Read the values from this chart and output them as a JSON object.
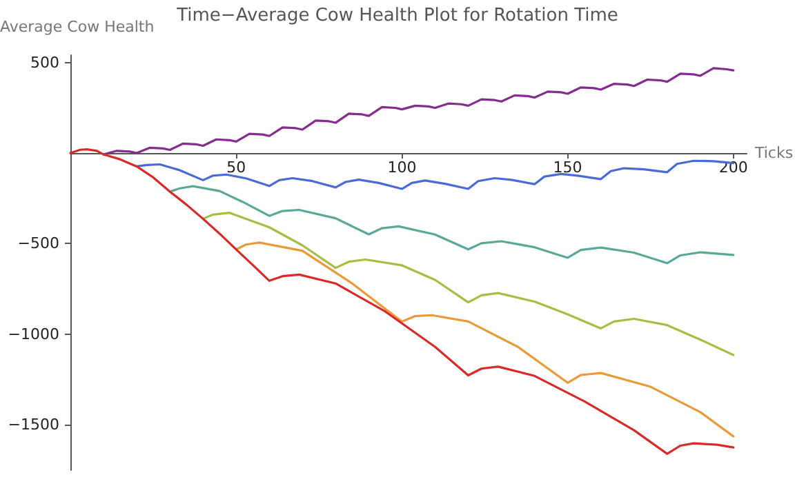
{
  "chart_data": {
    "type": "line",
    "title": "Time−Average Cow Health Plot for Rotation Time",
    "xlabel": "Ticks",
    "ylabel": "Average Cow Health",
    "xlim": [
      0,
      204
    ],
    "ylim": [
      -1750,
      540
    ],
    "xticks": [
      50,
      100,
      150,
      200
    ],
    "yticks": [
      {
        "value": -1500,
        "label": "−1500"
      },
      {
        "value": -1000,
        "label": "−1000"
      },
      {
        "value": -500,
        "label": "−500"
      },
      500
    ],
    "grid": false,
    "marker": "none",
    "line_style": "solid",
    "series": [
      {
        "color": "#852d8f",
        "x": [
          10,
          14,
          18,
          20,
          24,
          28,
          30,
          34,
          38,
          40,
          44,
          48,
          50,
          54,
          58,
          60,
          64,
          68,
          70,
          74,
          78,
          80,
          84,
          88,
          90,
          94,
          98,
          100,
          104,
          108,
          110,
          114,
          118,
          120,
          124,
          128,
          130,
          134,
          138,
          140,
          144,
          148,
          150,
          154,
          158,
          160,
          164,
          168,
          170,
          174,
          178,
          180,
          184,
          188,
          190,
          194,
          198,
          200
        ],
        "values": [
          -8,
          12,
          8,
          0,
          29,
          25,
          17,
          52,
          48,
          40,
          75,
          71,
          63,
          106,
          102,
          94,
          141,
          137,
          129,
          179,
          175,
          167,
          217,
          213,
          205,
          253,
          249,
          241,
          261,
          257,
          249,
          273,
          269,
          261,
          296,
          292,
          284,
          318,
          314,
          306,
          339,
          335,
          327,
          362,
          358,
          350,
          382,
          378,
          370,
          405,
          401,
          393,
          438,
          434,
          426,
          468,
          462,
          456
        ]
      },
      {
        "color": "#4a6ad6",
        "x": [
          20,
          23,
          27,
          33,
          40,
          43,
          47,
          53,
          60,
          63,
          67,
          73,
          80,
          83,
          87,
          93,
          100,
          103,
          107,
          113,
          120,
          123,
          128,
          133,
          140,
          143,
          148,
          153,
          160,
          163,
          167,
          173,
          180,
          183,
          188,
          194,
          200
        ],
        "values": [
          -74,
          -66,
          -63,
          -95,
          -150,
          -125,
          -119,
          -140,
          -182,
          -150,
          -139,
          -155,
          -190,
          -160,
          -147,
          -165,
          -198,
          -165,
          -152,
          -170,
          -198,
          -155,
          -139,
          -148,
          -172,
          -130,
          -116,
          -125,
          -144,
          -100,
          -84,
          -90,
          -106,
          -60,
          -43,
          -45,
          -56
        ]
      },
      {
        "color": "#5aa898",
        "x": [
          30,
          33,
          37,
          45,
          52,
          60,
          64,
          69,
          80,
          90,
          94,
          99,
          110,
          120,
          124,
          130,
          140,
          150,
          154,
          160,
          170,
          180,
          184,
          190,
          200
        ],
        "values": [
          -213,
          -195,
          -183,
          -210,
          -270,
          -347,
          -320,
          -314,
          -360,
          -449,
          -415,
          -405,
          -450,
          -532,
          -498,
          -487,
          -520,
          -578,
          -535,
          -522,
          -550,
          -608,
          -565,
          -548,
          -563
        ]
      },
      {
        "color": "#a8bd44",
        "x": [
          40,
          43,
          48,
          60,
          70,
          80,
          84,
          89,
          100,
          110,
          120,
          124,
          129,
          140,
          150,
          160,
          164,
          170,
          180,
          190,
          200
        ],
        "values": [
          -363,
          -340,
          -330,
          -410,
          -510,
          -634,
          -600,
          -588,
          -620,
          -700,
          -824,
          -785,
          -773,
          -820,
          -890,
          -968,
          -930,
          -915,
          -950,
          -1030,
          -1115
        ]
      },
      {
        "color": "#e89b38",
        "x": [
          50,
          53,
          57,
          70,
          85,
          100,
          104,
          109,
          120,
          135,
          150,
          154,
          160,
          175,
          190,
          200
        ],
        "values": [
          -532,
          -505,
          -494,
          -540,
          -720,
          -930,
          -900,
          -895,
          -930,
          -1070,
          -1268,
          -1225,
          -1214,
          -1290,
          -1430,
          -1564
        ]
      },
      {
        "color": "#d92a2a",
        "x": [
          0,
          3,
          5,
          8,
          10,
          15,
          20,
          25,
          30,
          35,
          40,
          45,
          50,
          55,
          60,
          64,
          69,
          80,
          95,
          110,
          120,
          124,
          129,
          140,
          155,
          170,
          180,
          184,
          188,
          195,
          200
        ],
        "values": [
          0,
          18,
          20,
          12,
          -8,
          -35,
          -74,
          -135,
          -213,
          -285,
          -363,
          -445,
          -532,
          -618,
          -705,
          -680,
          -671,
          -720,
          -875,
          -1070,
          -1227,
          -1190,
          -1179,
          -1230,
          -1370,
          -1530,
          -1660,
          -1615,
          -1602,
          -1610,
          -1625
        ]
      }
    ]
  }
}
